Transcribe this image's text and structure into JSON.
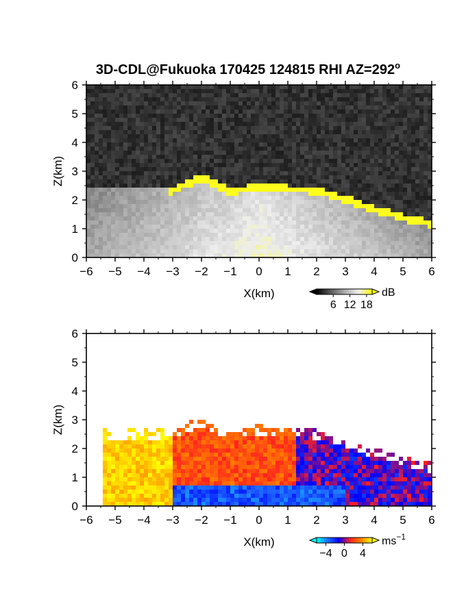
{
  "title": "3D-CDL@Fukuoka 170425 124815 RHI AZ=292",
  "title_sup": "o",
  "chart_data": [
    {
      "type": "heatmap",
      "name": "reflectivity",
      "xlabel": "X(km)",
      "ylabel": "Z(km)",
      "xlim": [
        -6,
        6
      ],
      "ylim": [
        0,
        6
      ],
      "xticks": [
        "-6",
        "-5",
        "-4",
        "-3",
        "-2",
        "-1",
        "0",
        "1",
        "2",
        "3",
        "4",
        "5",
        "6"
      ],
      "yticks": [
        "0",
        "1",
        "2",
        "3",
        "4",
        "5",
        "6"
      ],
      "colorbar": {
        "unit": "dB",
        "range": [
          0,
          20
        ],
        "ticks": [
          "6",
          "12",
          "18"
        ],
        "colors": [
          "#000000",
          "#5a5a5a",
          "#a9a9a9",
          "#eeeeee",
          "#ffff00"
        ]
      },
      "cloud_top_km": [
        {
          "x": -3.0,
          "z": 2.45
        },
        {
          "x": -2.0,
          "z": 2.9
        },
        {
          "x": -1.0,
          "z": 2.4
        },
        {
          "x": 0.0,
          "z": 2.6
        },
        {
          "x": 1.0,
          "z": 2.5
        },
        {
          "x": 2.0,
          "z": 2.45
        },
        {
          "x": 3.0,
          "z": 2.15
        },
        {
          "x": 4.0,
          "z": 1.8
        },
        {
          "x": 5.0,
          "z": 1.5
        },
        {
          "x": 6.0,
          "z": 1.3
        }
      ]
    },
    {
      "type": "heatmap",
      "name": "doppler_velocity",
      "xlabel": "X(km)",
      "ylabel": "Z(km)",
      "xlim": [
        -6,
        6
      ],
      "ylim": [
        0,
        6
      ],
      "xticks": [
        "-6",
        "-5",
        "-4",
        "-3",
        "-2",
        "-1",
        "0",
        "1",
        "2",
        "3",
        "4",
        "5",
        "6"
      ],
      "yticks": [
        "0",
        "1",
        "2",
        "3",
        "4",
        "5",
        "6"
      ],
      "colorbar": {
        "unit": "ms",
        "unit_sup": "-1",
        "range": [
          -6,
          6
        ],
        "ticks": [
          "-4",
          "0",
          "4"
        ],
        "colors": [
          "#00ffff",
          "#1f6fff",
          "#0000ff",
          "#ff2020",
          "#ff8000",
          "#ffff00"
        ]
      }
    }
  ]
}
